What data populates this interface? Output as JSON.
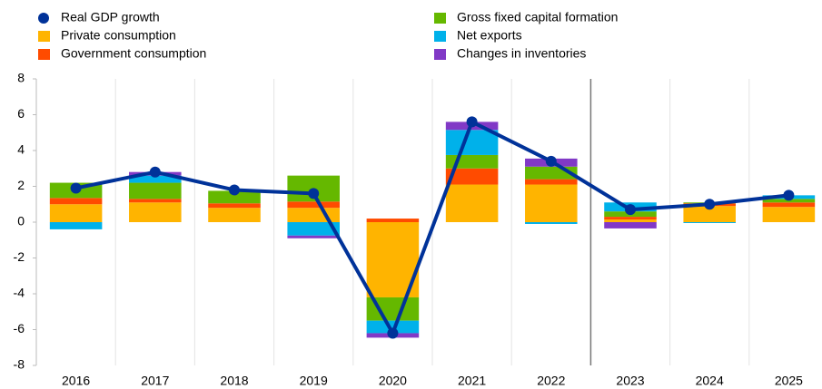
{
  "chart_data": {
    "type": "bar",
    "stacked": true,
    "categories": [
      "2016",
      "2017",
      "2018",
      "2019",
      "2020",
      "2021",
      "2022",
      "2023",
      "2024",
      "2025"
    ],
    "series": [
      {
        "name": "Private consumption",
        "color": "#ffb400",
        "values": [
          1.0,
          1.1,
          0.8,
          0.8,
          -4.2,
          2.1,
          2.1,
          0.15,
          0.9,
          0.85
        ]
      },
      {
        "name": "Government consumption",
        "color": "#ff4b00",
        "values": [
          0.35,
          0.2,
          0.25,
          0.35,
          0.2,
          0.9,
          0.3,
          0.15,
          0.15,
          0.25
        ]
      },
      {
        "name": "Gross fixed capital formation",
        "color": "#65b800",
        "values": [
          0.85,
          0.9,
          0.7,
          1.45,
          -1.3,
          0.75,
          0.7,
          0.3,
          0.05,
          0.2
        ]
      },
      {
        "name": "Net exports",
        "color": "#00b1ea",
        "values": [
          -0.4,
          0.4,
          0,
          -0.75,
          -0.7,
          1.4,
          -0.1,
          0.5,
          -0.05,
          0.2
        ]
      },
      {
        "name": "Changes in inventories",
        "color": "#8139c6",
        "values": [
          0,
          0.2,
          0,
          -0.15,
          -0.25,
          0.45,
          0.45,
          -0.35,
          0,
          0
        ]
      },
      {
        "name": "Real GDP growth",
        "color": "#003299",
        "type": "line",
        "values": [
          1.9,
          2.8,
          1.8,
          1.6,
          -6.2,
          5.6,
          3.4,
          0.7,
          1.0,
          1.5
        ]
      }
    ],
    "ylim": [
      -8,
      8
    ],
    "yticks": [
      -8,
      -6,
      -4,
      -2,
      0,
      2,
      4,
      6,
      8
    ]
  }
}
